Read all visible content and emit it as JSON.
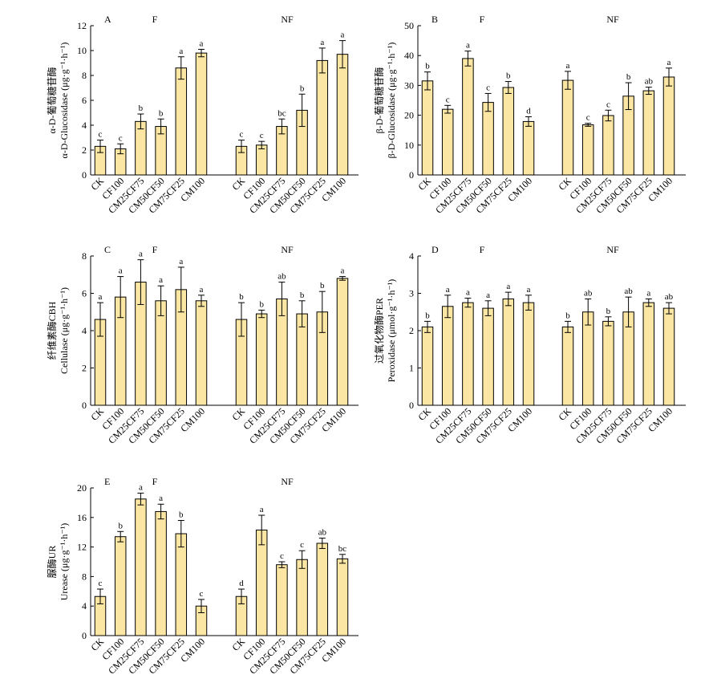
{
  "colors": {
    "bar_fill": "#FBE7A3",
    "bar_stroke": "#000000"
  },
  "categories": [
    "CK",
    "CF100",
    "CM25CF75",
    "CM50CF50",
    "CM75CF25",
    "CM100"
  ],
  "chart_data": [
    {
      "type": "bar",
      "panel_letter": "A",
      "group_labels": [
        "F",
        "NF"
      ],
      "ylabel_cn": "α-D-葡萄糖苷酶",
      "ylabel_en": "α-D-Glucosidase (μg·g⁻¹·h⁻¹)",
      "ylim": [
        0,
        12
      ],
      "yticks": [
        0,
        2,
        4,
        6,
        8,
        10,
        12
      ],
      "categories": [
        "CK",
        "CF100",
        "CM25CF75",
        "CM50CF50",
        "CM75CF25",
        "CM100"
      ],
      "series": [
        {
          "group": "F",
          "values": [
            2.3,
            2.1,
            4.3,
            3.9,
            8.6,
            9.8
          ],
          "errors": [
            0.5,
            0.4,
            0.6,
            0.6,
            0.9,
            0.3
          ],
          "letters": [
            "c",
            "c",
            "b",
            "b",
            "a",
            "a"
          ]
        },
        {
          "group": "NF",
          "values": [
            2.3,
            2.4,
            3.9,
            5.2,
            9.2,
            9.7
          ],
          "errors": [
            0.5,
            0.3,
            0.6,
            1.3,
            1.0,
            1.1
          ],
          "letters": [
            "c",
            "c",
            "bc",
            "b",
            "a",
            "a"
          ]
        }
      ]
    },
    {
      "type": "bar",
      "panel_letter": "B",
      "group_labels": [
        "F",
        "NF"
      ],
      "ylabel_cn": "β-D-葡萄糖苷酶",
      "ylabel_en": "β-D-Glucosidase (μg·g⁻¹·h⁻¹)",
      "ylim": [
        0,
        50
      ],
      "yticks": [
        0,
        10,
        20,
        30,
        40,
        50
      ],
      "categories": [
        "CK",
        "CF100",
        "CM25CF75",
        "CM50CF50",
        "CM75CF25",
        "CM100"
      ],
      "series": [
        {
          "group": "F",
          "values": [
            31.5,
            22.0,
            39.0,
            24.3,
            29.3,
            17.9
          ],
          "errors": [
            3.0,
            1.3,
            2.5,
            3.0,
            2.0,
            1.6
          ],
          "letters": [
            "b",
            "c",
            "a",
            "c",
            "b",
            "d"
          ]
        },
        {
          "group": "NF",
          "values": [
            31.7,
            16.8,
            19.9,
            26.4,
            28.2,
            32.8
          ],
          "errors": [
            3.0,
            0.5,
            1.8,
            4.5,
            1.2,
            3.0
          ],
          "letters": [
            "a",
            "c",
            "c",
            "b",
            "ab",
            "a"
          ]
        }
      ]
    },
    {
      "type": "bar",
      "panel_letter": "C",
      "group_labels": [
        "F",
        "NF"
      ],
      "ylabel_cn": "纤维素酶CBH",
      "ylabel_en": "Cellulase (μg·g⁻¹·h⁻¹)",
      "ylim": [
        0,
        8
      ],
      "yticks": [
        0,
        2,
        4,
        6,
        8
      ],
      "categories": [
        "CK",
        "CF100",
        "CM25CF75",
        "CM50CF50",
        "CM75CF25",
        "CM100"
      ],
      "series": [
        {
          "group": "F",
          "values": [
            4.6,
            5.8,
            6.6,
            5.6,
            6.2,
            5.6
          ],
          "errors": [
            0.9,
            1.1,
            1.2,
            0.8,
            1.2,
            0.3
          ],
          "letters": [
            "a",
            "a",
            "a",
            "a",
            "a",
            "a"
          ]
        },
        {
          "group": "NF",
          "values": [
            4.6,
            4.9,
            5.7,
            4.9,
            5.0,
            6.8
          ],
          "errors": [
            0.9,
            0.2,
            0.9,
            0.7,
            1.1,
            0.1
          ],
          "letters": [
            "b",
            "b",
            "ab",
            "b",
            "b",
            "a"
          ]
        }
      ]
    },
    {
      "type": "bar",
      "panel_letter": "D",
      "group_labels": [
        "F",
        "NF"
      ],
      "ylabel_cn": "过氧化物酶PER",
      "ylabel_en": "Peroxidase (μmol·g⁻¹·h⁻¹)",
      "ylim": [
        0,
        4
      ],
      "yticks": [
        0,
        1,
        2,
        3,
        4
      ],
      "categories": [
        "CK",
        "CF100",
        "CM25CF75",
        "CM50CF50",
        "CM75CF25",
        "CM100"
      ],
      "series": [
        {
          "group": "F",
          "values": [
            2.1,
            2.65,
            2.75,
            2.6,
            2.85,
            2.75
          ],
          "errors": [
            0.15,
            0.3,
            0.12,
            0.2,
            0.18,
            0.2
          ],
          "letters": [
            "b",
            "a",
            "a",
            "a",
            "a",
            "a"
          ]
        },
        {
          "group": "NF",
          "values": [
            2.1,
            2.5,
            2.25,
            2.5,
            2.75,
            2.6
          ],
          "errors": [
            0.15,
            0.35,
            0.12,
            0.4,
            0.1,
            0.15
          ],
          "letters": [
            "b",
            "ab",
            "b",
            "ab",
            "a",
            "ab"
          ]
        }
      ]
    },
    {
      "type": "bar",
      "panel_letter": "E",
      "group_labels": [
        "F",
        "NF"
      ],
      "ylabel_cn": "脲酶UR",
      "ylabel_en": "Urease (μg·g⁻¹·h⁻¹)",
      "ylim": [
        0,
        20
      ],
      "yticks": [
        0,
        4,
        8,
        12,
        16,
        20
      ],
      "categories": [
        "CK",
        "CF100",
        "CM25CF75",
        "CM50CF50",
        "CM75CF25",
        "CM100"
      ],
      "series": [
        {
          "group": "F",
          "values": [
            5.3,
            13.4,
            18.5,
            16.8,
            13.8,
            4.0
          ],
          "errors": [
            1.0,
            0.7,
            0.8,
            1.0,
            1.8,
            0.9
          ],
          "letters": [
            "c",
            "b",
            "a",
            "a",
            "b",
            "c"
          ]
        },
        {
          "group": "NF",
          "values": [
            5.3,
            14.3,
            9.6,
            10.3,
            12.5,
            10.4
          ],
          "errors": [
            1.0,
            2.0,
            0.4,
            1.2,
            0.7,
            0.6
          ],
          "letters": [
            "d",
            "a",
            "c",
            "c",
            "ab",
            "bc"
          ]
        }
      ]
    }
  ]
}
